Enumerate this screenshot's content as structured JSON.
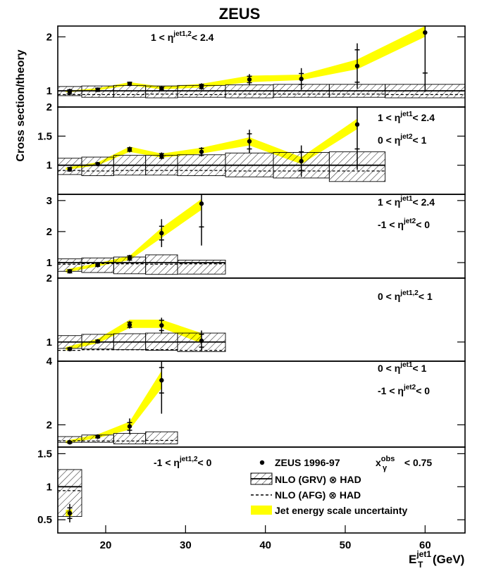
{
  "chart_data": {
    "type": "scatter",
    "title": "ZEUS",
    "ylabel": "Cross section/theory",
    "xlabel": {
      "main": "E",
      "sub": "T",
      "sup": "jet1",
      "unit": "(GeV)"
    },
    "xlim": [
      14,
      65
    ],
    "x_ticks": [
      20,
      30,
      40,
      50,
      60
    ],
    "bins": [
      [
        14,
        17
      ],
      [
        17,
        21
      ],
      [
        21,
        25
      ],
      [
        25,
        29
      ],
      [
        29,
        35
      ],
      [
        35,
        41
      ],
      [
        41,
        48
      ],
      [
        48,
        55
      ],
      [
        55,
        65
      ]
    ],
    "series_legend": [
      {
        "key": "data",
        "text": "ZEUS 1996-97"
      },
      {
        "key": "grv",
        "text": "NLO (GRV) ⊗ HAD"
      },
      {
        "key": "afg",
        "text": "NLO (AFG) ⊗ HAD"
      },
      {
        "key": "band",
        "text": "Jet energy scale uncertainty"
      }
    ],
    "xgamma_label": {
      "main": "x",
      "sub": "γ",
      "sup": "obs",
      "rest": " < 0.75"
    },
    "colors": {
      "band": "#ffff00",
      "marker": "#000000",
      "hatch": "#000000"
    },
    "panels": [
      {
        "ylim": [
          0.7,
          2.2
        ],
        "y_ticks": [
          1,
          2
        ],
        "y_tick_labels": [
          "1",
          "2"
        ],
        "label_lines": [
          [
            "1 < η",
            "jet1,2",
            "< 2.4"
          ]
        ],
        "data": [
          {
            "x": 15.5,
            "y": 0.98,
            "stat": 0.04,
            "sys": 0.06
          },
          {
            "x": 19.0,
            "y": 1.02,
            "stat": 0.03,
            "sys": 0.04
          },
          {
            "x": 23.0,
            "y": 1.13,
            "stat": 0.03,
            "sys": 0.04
          },
          {
            "x": 27.0,
            "y": 1.04,
            "stat": 0.03,
            "sys": 0.05
          },
          {
            "x": 32.0,
            "y": 1.08,
            "stat": 0.04,
            "sys": 0.06
          },
          {
            "x": 38.0,
            "y": 1.21,
            "stat": 0.06,
            "sys": 0.1
          },
          {
            "x": 44.5,
            "y": 1.22,
            "stat": 0.1,
            "sys": 0.2
          },
          {
            "x": 51.5,
            "y": 1.46,
            "stat": 0.3,
            "sys": 0.42
          },
          {
            "x": 60.0,
            "y": 2.08,
            "stat": 0.75,
            "sys": 1.1
          }
        ],
        "band": [
          [
            15,
            0.97,
            1.0
          ],
          [
            19,
            1.01,
            1.05
          ],
          [
            23,
            1.1,
            1.16
          ],
          [
            27,
            1.03,
            1.08
          ],
          [
            32,
            1.06,
            1.13
          ],
          [
            38,
            1.16,
            1.28
          ],
          [
            44.5,
            1.2,
            1.3
          ],
          [
            51.5,
            1.4,
            1.58
          ],
          [
            60,
            2.0,
            2.2
          ]
        ],
        "theory_bins": [
          14,
          17,
          21,
          25,
          29,
          35,
          41,
          48,
          55,
          65
        ],
        "hatch_lo": [
          0.91,
          0.88,
          0.88,
          0.87,
          0.88,
          0.87,
          0.88,
          0.88,
          0.87
        ],
        "hatch_hi": [
          1.08,
          1.09,
          1.1,
          1.09,
          1.1,
          1.11,
          1.12,
          1.12,
          1.12
        ],
        "afg": [
          0.93,
          0.93,
          0.93,
          0.94,
          0.93,
          0.94,
          0.94,
          0.94,
          0.93
        ]
      },
      {
        "ylim": [
          0.5,
          2.0
        ],
        "y_ticks": [
          1,
          1.5,
          2
        ],
        "y_tick_labels": [
          "1",
          "1.5",
          "2"
        ],
        "label_lines": [
          [
            "1 < η",
            "jet1",
            "< 2.4"
          ],
          [
            "0 < η",
            "jet2",
            "< 1"
          ]
        ],
        "data": [
          {
            "x": 15.5,
            "y": 0.93,
            "stat": 0.03,
            "sys": 0.04
          },
          {
            "x": 19.0,
            "y": 1.02,
            "stat": 0.02,
            "sys": 0.03
          },
          {
            "x": 23.0,
            "y": 1.27,
            "stat": 0.03,
            "sys": 0.05
          },
          {
            "x": 27.0,
            "y": 1.16,
            "stat": 0.04,
            "sys": 0.06
          },
          {
            "x": 32.0,
            "y": 1.23,
            "stat": 0.06,
            "sys": 0.08
          },
          {
            "x": 38.0,
            "y": 1.41,
            "stat": 0.13,
            "sys": 0.2
          },
          {
            "x": 44.5,
            "y": 1.07,
            "stat": 0.16,
            "sys": 0.27
          },
          {
            "x": 51.5,
            "y": 1.7,
            "stat": 0.42,
            "sys": 0.78
          }
        ],
        "band": [
          [
            15,
            0.92,
            0.96
          ],
          [
            19,
            1.0,
            1.05
          ],
          [
            23,
            1.23,
            1.32
          ],
          [
            27,
            1.13,
            1.2
          ],
          [
            32,
            1.2,
            1.3
          ],
          [
            38,
            1.34,
            1.48
          ],
          [
            44.5,
            1.02,
            1.14
          ],
          [
            51.5,
            1.62,
            1.8
          ]
        ],
        "theory_bins": [
          14,
          17,
          21,
          25,
          29,
          35,
          41,
          48,
          55
        ],
        "hatch_lo": [
          0.84,
          0.82,
          0.83,
          0.83,
          0.82,
          0.8,
          0.78,
          0.72
        ],
        "hatch_hi": [
          1.12,
          1.14,
          1.17,
          1.17,
          1.18,
          1.21,
          1.22,
          1.23
        ],
        "afg": [
          0.91,
          0.9,
          0.91,
          0.91,
          0.91,
          0.9,
          0.9,
          0.9
        ]
      },
      {
        "ylim": [
          0.5,
          3.2
        ],
        "y_ticks": [
          1,
          2,
          3
        ],
        "y_tick_labels": [
          "1",
          "2",
          "3"
        ],
        "label_lines": [
          [
            "1 < η",
            "jet1",
            "< 2.4"
          ],
          [
            "-1 < η",
            "jet2",
            "< 0"
          ]
        ],
        "data": [
          {
            "x": 15.5,
            "y": 0.72,
            "stat": 0.05,
            "sys": 0.07
          },
          {
            "x": 19.0,
            "y": 0.92,
            "stat": 0.04,
            "sys": 0.06
          },
          {
            "x": 23.0,
            "y": 1.15,
            "stat": 0.07,
            "sys": 0.1
          },
          {
            "x": 27.0,
            "y": 1.95,
            "stat": 0.22,
            "sys": 0.45
          },
          {
            "x": 32.0,
            "y": 2.9,
            "stat": 0.75,
            "sys": 1.35
          }
        ],
        "band": [
          [
            15,
            0.68,
            0.78
          ],
          [
            19,
            0.88,
            0.98
          ],
          [
            23,
            1.08,
            1.22
          ],
          [
            27,
            1.8,
            2.12
          ],
          [
            32,
            2.7,
            3.05
          ]
        ],
        "theory_bins": [
          14,
          17,
          21,
          25,
          29,
          35
        ],
        "hatch_lo": [
          0.72,
          0.68,
          0.64,
          0.62,
          0.63
        ],
        "hatch_hi": [
          1.12,
          1.15,
          1.18,
          1.25,
          1.08
        ],
        "afg": [
          0.95,
          0.97,
          0.96,
          0.95,
          0.96
        ]
      },
      {
        "ylim": [
          0.7,
          2.0
        ],
        "y_ticks": [
          1,
          2
        ],
        "y_tick_labels": [
          "1",
          "2"
        ],
        "label_lines": [
          [
            "0 < η",
            "jet1,2",
            "< 1"
          ]
        ],
        "data": [
          {
            "x": 15.5,
            "y": 0.89,
            "stat": 0.02,
            "sys": 0.03
          },
          {
            "x": 19.0,
            "y": 1.01,
            "stat": 0.02,
            "sys": 0.03
          },
          {
            "x": 23.0,
            "y": 1.27,
            "stat": 0.04,
            "sys": 0.06
          },
          {
            "x": 27.0,
            "y": 1.26,
            "stat": 0.08,
            "sys": 0.12
          },
          {
            "x": 32.0,
            "y": 1.02,
            "stat": 0.1,
            "sys": 0.16
          }
        ],
        "band": [
          [
            15,
            0.87,
            0.92
          ],
          [
            19,
            0.98,
            1.05
          ],
          [
            23,
            1.22,
            1.35
          ],
          [
            27,
            1.22,
            1.35
          ],
          [
            32,
            0.98,
            1.14
          ]
        ],
        "theory_bins": [
          14,
          17,
          21,
          25,
          29,
          35
        ],
        "hatch_lo": [
          0.9,
          0.89,
          0.88,
          0.87,
          0.85
        ],
        "hatch_hi": [
          1.1,
          1.12,
          1.13,
          1.14,
          1.14
        ],
        "afg": [
          0.87,
          0.88,
          0.88,
          0.88,
          0.87
        ]
      },
      {
        "ylim": [
          1.3,
          4.0
        ],
        "y_ticks": [
          2,
          4
        ],
        "y_tick_labels": [
          "2",
          "4"
        ],
        "label_lines": [
          [
            "0 < η",
            "jet1",
            "< 1"
          ],
          [
            "-1 < η",
            "jet2",
            "< 0"
          ]
        ],
        "data": [
          {
            "x": 15.5,
            "y": 1.45,
            "stat": 0.03,
            "sys": 0.05
          },
          {
            "x": 19.0,
            "y": 1.63,
            "stat": 0.04,
            "sys": 0.06
          },
          {
            "x": 23.0,
            "y": 1.95,
            "stat": 0.12,
            "sys": 0.25
          },
          {
            "x": 27.0,
            "y": 3.4,
            "stat": 0.4,
            "sys": 1.05
          }
        ],
        "band": [
          [
            15,
            1.42,
            1.5
          ],
          [
            19,
            1.58,
            1.7
          ],
          [
            23,
            1.85,
            2.1
          ],
          [
            27,
            3.15,
            3.7
          ]
        ],
        "theory_bins": [
          14,
          17,
          21,
          25,
          29
        ],
        "hatch_lo": [
          1.45,
          1.45,
          1.4,
          1.4
        ],
        "hatch_hi": [
          1.63,
          1.68,
          1.73,
          1.78
        ],
        "afg": [
          1.5,
          1.49,
          1.49,
          1.51
        ]
      },
      {
        "ylim": [
          0.3,
          1.6
        ],
        "y_ticks": [
          0.5,
          1,
          1.5
        ],
        "y_tick_labels": [
          "0.5",
          "1",
          "1.5"
        ],
        "label_lines": [
          [
            "-1 < η",
            "jet1,2",
            "< 0"
          ]
        ],
        "data": [
          {
            "x": 15.5,
            "y": 0.6,
            "stat": 0.08,
            "sys": 0.14
          }
        ],
        "band": [
          [
            15,
            0.55,
            0.65
          ],
          [
            15.8,
            0.56,
            0.66
          ]
        ],
        "theory_bins": [
          14,
          17
        ],
        "hatch_lo": [
          0.55
        ],
        "hatch_hi": [
          1.26
        ],
        "afg": [
          0.94
        ]
      }
    ]
  }
}
